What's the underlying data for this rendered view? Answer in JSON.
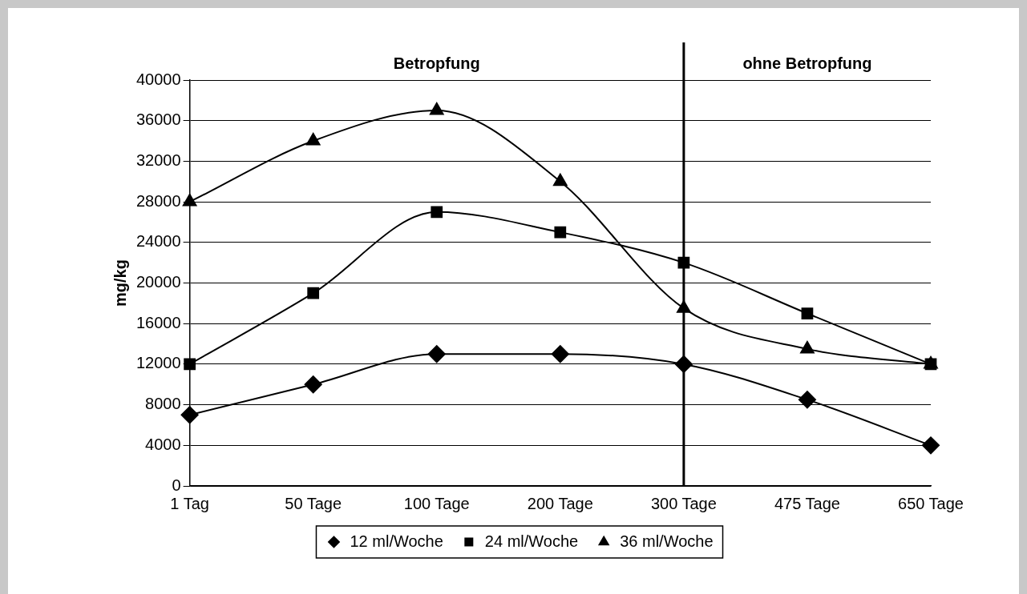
{
  "chart_data": {
    "type": "line",
    "ylabel": "mg/kg",
    "categories": [
      "1 Tag",
      "50 Tage",
      "100 Tage",
      "200 Tage",
      "300 Tage",
      "475 Tage",
      "650 Tage"
    ],
    "series": [
      {
        "name": "12 ml/Woche",
        "color": "#000000",
        "marker": "diamond",
        "values": [
          7000,
          10000,
          13000,
          13000,
          12000,
          8500,
          4000
        ]
      },
      {
        "name": "24 ml/Woche",
        "color": "#000000",
        "marker": "square",
        "values": [
          12000,
          19000,
          27000,
          25000,
          22000,
          17000,
          12000
        ]
      },
      {
        "name": "36 ml/Woche",
        "color": "#000000",
        "marker": "triangle",
        "values": [
          28000,
          34000,
          37000,
          30000,
          17500,
          13500,
          12000
        ]
      }
    ],
    "ylim": [
      0,
      40000
    ],
    "yticks": [
      0,
      4000,
      8000,
      12000,
      16000,
      20000,
      24000,
      28000,
      32000,
      36000,
      40000
    ],
    "grid": "y",
    "legend": "bottom",
    "line_style": "solid",
    "ref_lines": [
      {
        "axis": "x",
        "value": "300 Tage",
        "color": "#000000"
      }
    ],
    "annotations": [
      "Betropfung",
      "ohne Betropfung"
    ]
  }
}
